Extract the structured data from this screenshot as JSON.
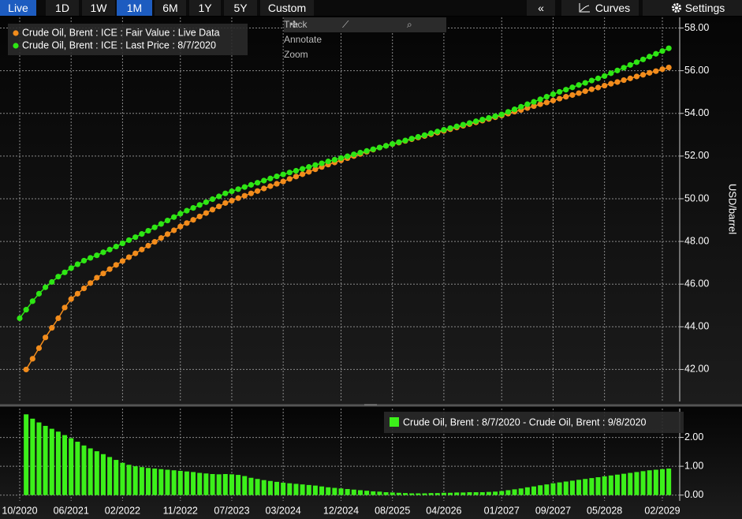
{
  "toolbar": {
    "ranges": [
      "Live",
      "1D",
      "1W",
      "1M",
      "6M",
      "1Y",
      "5Y",
      "Custom"
    ],
    "collapse": "«",
    "curves": "Curves",
    "settings": "Settings"
  },
  "tools": [
    "Track",
    "Annotate",
    "Zoom"
  ],
  "chart_data": {
    "type": "line",
    "categories": [
      "10/2020",
      null,
      null,
      null,
      null,
      null,
      null,
      null,
      "06/2021",
      null,
      null,
      null,
      null,
      null,
      null,
      null,
      "02/2022",
      null,
      null,
      null,
      null,
      null,
      null,
      null,
      null,
      "11/2022",
      null,
      null,
      null,
      null,
      null,
      null,
      null,
      "07/2023",
      null,
      null,
      null,
      null,
      null,
      null,
      null,
      "03/2024",
      null,
      null,
      null,
      null,
      null,
      null,
      null,
      null,
      "12/2024",
      null,
      null,
      null,
      null,
      null,
      null,
      null,
      "08/2025",
      null,
      null,
      null,
      null,
      null,
      null,
      null,
      "04/2026",
      null,
      null,
      null,
      null,
      null,
      null,
      null,
      null,
      "01/2027",
      null,
      null,
      null,
      null,
      null,
      null,
      null,
      "09/2027",
      null,
      null,
      null,
      null,
      null,
      null,
      null,
      "05/2028",
      null,
      null,
      null,
      null,
      null,
      null,
      null,
      null,
      "02/2029",
      null
    ],
    "series": [
      {
        "name": "Crude Oil, Brent : ICE : Fair Value : Live Data",
        "color": "#f28c1c",
        "values": [
          null,
          42.0,
          42.5,
          43.0,
          43.5,
          43.95,
          44.4,
          44.9,
          45.3,
          45.55,
          45.8,
          46.05,
          46.3,
          46.5,
          46.7,
          46.9,
          47.08,
          47.26,
          47.44,
          47.62,
          47.8,
          47.98,
          48.16,
          48.34,
          48.52,
          48.7,
          48.86,
          49.01,
          49.17,
          49.33,
          49.49,
          49.64,
          49.8,
          49.91,
          50.03,
          50.14,
          50.25,
          50.36,
          50.48,
          50.59,
          50.7,
          50.81,
          50.93,
          51.04,
          51.15,
          51.26,
          51.38,
          51.49,
          51.6,
          51.7,
          51.8,
          51.9,
          52.0,
          52.1,
          52.2,
          52.3,
          52.4,
          52.48,
          52.56,
          52.63,
          52.71,
          52.79,
          52.87,
          52.94,
          53.02,
          53.1,
          53.18,
          53.26,
          53.34,
          53.42,
          53.5,
          53.58,
          53.66,
          53.74,
          53.82,
          53.9,
          53.99,
          54.08,
          54.16,
          54.25,
          54.34,
          54.43,
          54.51,
          54.6,
          54.69,
          54.78,
          54.86,
          54.95,
          55.04,
          55.13,
          55.21,
          55.3,
          55.39,
          55.47,
          55.56,
          55.64,
          55.73,
          55.81,
          55.9,
          55.98,
          56.07,
          56.15
        ]
      },
      {
        "name": "Crude Oil, Brent : ICE : Last Price : 8/7/2020",
        "color": "#2ee614",
        "values": [
          44.4,
          44.8,
          45.2,
          45.55,
          45.85,
          46.1,
          46.35,
          46.55,
          46.75,
          46.93,
          47.1,
          47.23,
          47.35,
          47.49,
          47.62,
          47.76,
          47.91,
          48.06,
          48.2,
          48.35,
          48.5,
          48.66,
          48.82,
          48.98,
          49.14,
          49.3,
          49.44,
          49.57,
          49.71,
          49.84,
          49.98,
          50.11,
          50.25,
          50.35,
          50.45,
          50.55,
          50.65,
          50.75,
          50.85,
          50.95,
          51.05,
          51.14,
          51.23,
          51.31,
          51.4,
          51.49,
          51.58,
          51.66,
          51.75,
          51.83,
          51.91,
          51.99,
          52.08,
          52.16,
          52.24,
          52.32,
          52.4,
          52.48,
          52.57,
          52.65,
          52.73,
          52.82,
          52.9,
          52.98,
          53.07,
          53.15,
          53.23,
          53.31,
          53.39,
          53.47,
          53.55,
          53.63,
          53.71,
          53.79,
          53.87,
          53.95,
          54.07,
          54.19,
          54.31,
          54.43,
          54.54,
          54.66,
          54.78,
          54.9,
          55.01,
          55.11,
          55.22,
          55.33,
          55.43,
          55.54,
          55.64,
          55.75,
          55.88,
          56.01,
          56.14,
          56.27,
          56.4,
          56.53,
          56.66,
          56.79,
          56.92,
          57.05
        ]
      }
    ],
    "ylim": [
      40.5,
      58.5
    ],
    "yticks": [
      {
        "value": 42,
        "label": "42.00"
      },
      {
        "value": 44,
        "label": "44.00"
      },
      {
        "value": 46,
        "label": "46.00"
      },
      {
        "value": 48,
        "label": "48.00"
      },
      {
        "value": 50,
        "label": "50.00"
      },
      {
        "value": 52,
        "label": "52.00"
      },
      {
        "value": 54,
        "label": "54.00"
      },
      {
        "value": 56,
        "label": "56.00"
      },
      {
        "value": 58,
        "label": "58.00"
      }
    ],
    "y_label": "USD/barrel",
    "grid": true,
    "legend": "top-left",
    "lower_panel": {
      "type": "bar",
      "series": [
        {
          "name": "Crude Oil, Brent : 8/7/2020 - Crude Oil, Brent : 9/8/2020",
          "color": "#3cf01a",
          "values": [
            null,
            2.8,
            2.65,
            2.52,
            2.4,
            2.3,
            2.2,
            2.08,
            1.97,
            1.85,
            1.72,
            1.62,
            1.52,
            1.42,
            1.32,
            1.22,
            1.12,
            1.05,
            1.0,
            0.97,
            0.94,
            0.92,
            0.9,
            0.88,
            0.86,
            0.84,
            0.82,
            0.8,
            0.77,
            0.75,
            0.73,
            0.72,
            0.73,
            0.72,
            0.7,
            0.66,
            0.6,
            0.56,
            0.52,
            0.49,
            0.46,
            0.43,
            0.41,
            0.39,
            0.37,
            0.35,
            0.33,
            0.3,
            0.27,
            0.25,
            0.23,
            0.21,
            0.19,
            0.17,
            0.15,
            0.13,
            0.12,
            0.1,
            0.09,
            0.08,
            0.07,
            0.06,
            0.06,
            0.06,
            0.07,
            0.07,
            0.08,
            0.08,
            0.09,
            0.09,
            0.1,
            0.1,
            0.1,
            0.11,
            0.12,
            0.14,
            0.17,
            0.2,
            0.23,
            0.27,
            0.3,
            0.34,
            0.37,
            0.41,
            0.44,
            0.47,
            0.5,
            0.53,
            0.56,
            0.59,
            0.62,
            0.65,
            0.68,
            0.71,
            0.74,
            0.77,
            0.8,
            0.83,
            0.86,
            0.88,
            0.9,
            0.92
          ]
        }
      ],
      "ylim": [
        -0.2,
        3.0
      ],
      "yticks": [
        {
          "value": 0,
          "label": "0.00"
        },
        {
          "value": 1,
          "label": "1.00"
        },
        {
          "value": 2,
          "label": "2.00"
        }
      ],
      "legend": "top-right"
    }
  }
}
